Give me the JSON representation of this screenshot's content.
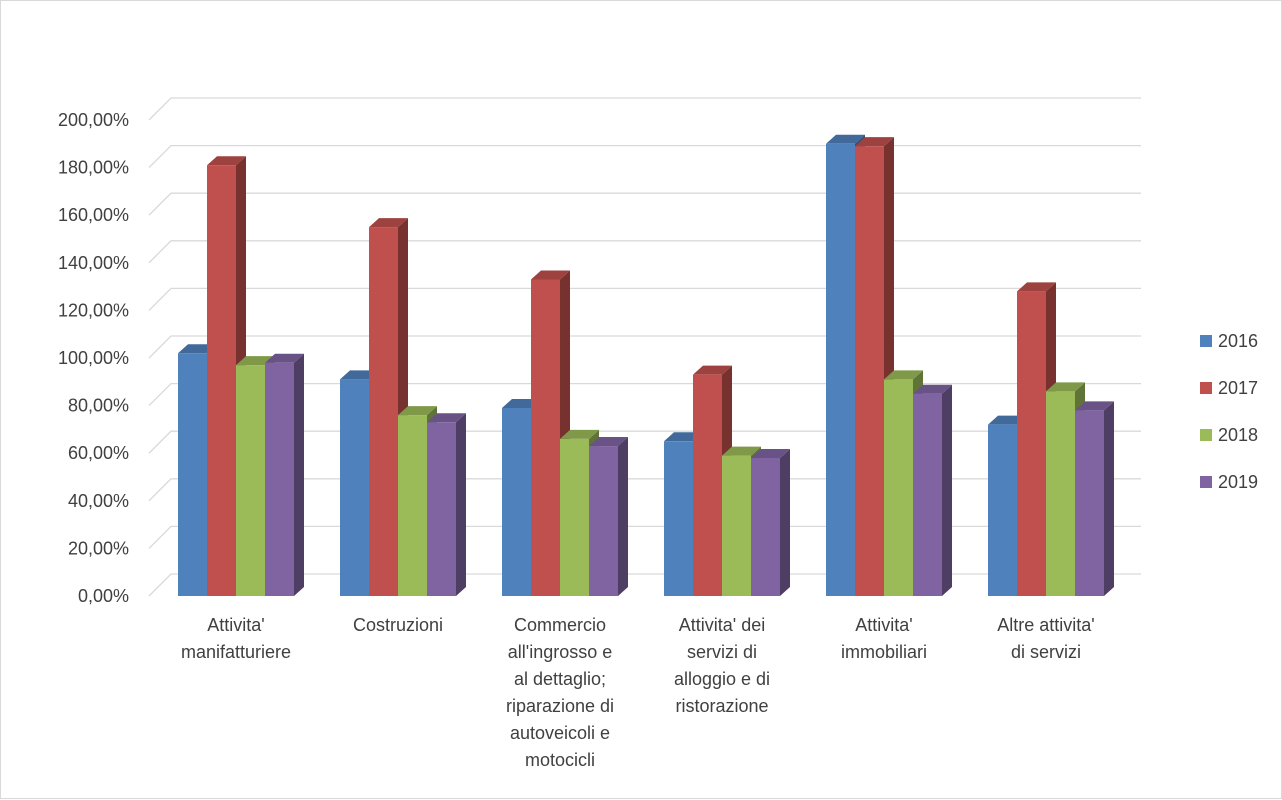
{
  "chart_data": {
    "type": "bar",
    "style": "3d-clustered-column",
    "title": "",
    "xlabel": "",
    "ylabel": "",
    "ylim": [
      0,
      200
    ],
    "y_tick_values": [
      0,
      20,
      40,
      60,
      80,
      100,
      120,
      140,
      160,
      180,
      200
    ],
    "y_tick_labels": [
      "0,00%",
      "20,00%",
      "40,00%",
      "60,00%",
      "80,00%",
      "100,00%",
      "120,00%",
      "140,00%",
      "160,00%",
      "180,00%",
      "200,00%"
    ],
    "grid": true,
    "legend_position": "right",
    "categories": [
      "Attivita' manifatturiere",
      "Costruzioni",
      "Commercio all'ingrosso e al dettaglio; riparazione di autoveicoli e motocicli",
      "Attivita' dei servizi di alloggio e di ristorazione",
      "Attivita' immobiliari",
      "Altre attivita' di servizi"
    ],
    "category_label_lines": [
      [
        "Attivita'",
        "manifatturiere"
      ],
      [
        "Costruzioni"
      ],
      [
        "Commercio",
        "all'ingrosso e",
        "al dettaglio;",
        "riparazione di",
        "autoveicoli e",
        "motocicli"
      ],
      [
        "Attivita' dei",
        "servizi di",
        "alloggio e di",
        "ristorazione"
      ],
      [
        "Attivita'",
        "immobiliari"
      ],
      [
        "Altre attivita'",
        "di servizi"
      ]
    ],
    "series": [
      {
        "name": "2016",
        "color": "#4f81bd",
        "values": [
          102,
          91,
          79,
          65,
          190,
          72
        ]
      },
      {
        "name": "2017",
        "color": "#c0504d",
        "values": [
          181,
          155,
          133,
          93,
          189,
          128
        ]
      },
      {
        "name": "2018",
        "color": "#9bbb59",
        "values": [
          97,
          76,
          66,
          59,
          91,
          86
        ]
      },
      {
        "name": "2019",
        "color": "#8064a2",
        "values": [
          98,
          73,
          63,
          58,
          85,
          78
        ]
      }
    ]
  }
}
